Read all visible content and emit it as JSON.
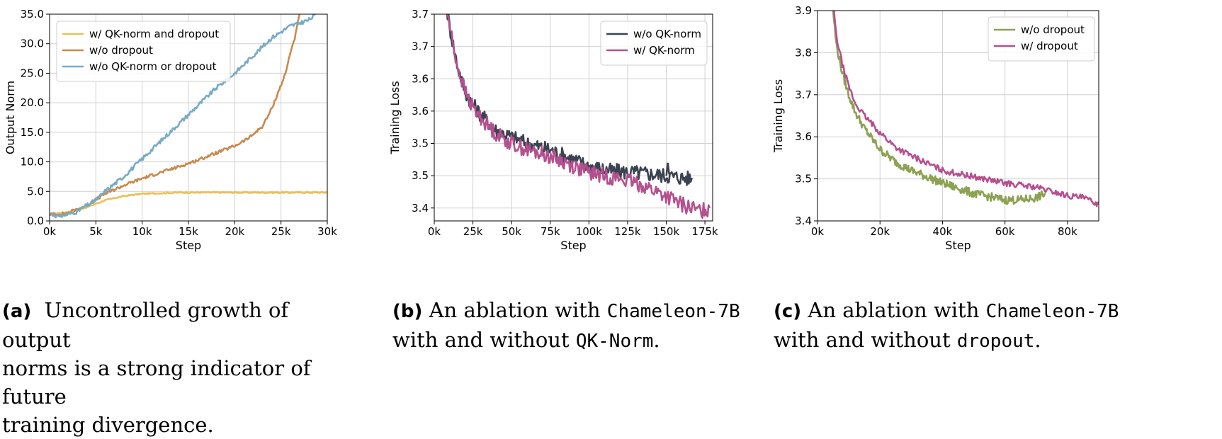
{
  "chart_data": [
    {
      "type": "line",
      "panel": "a",
      "xlabel": "Step",
      "ylabel": "Output Norm",
      "xlim": [
        0,
        30000
      ],
      "ylim": [
        0,
        35
      ],
      "x_ticks": [
        0,
        5000,
        10000,
        15000,
        20000,
        25000,
        30000
      ],
      "x_tick_labels": [
        "0k",
        "5k",
        "10k",
        "15k",
        "20k",
        "25k",
        "30k"
      ],
      "y_ticks": [
        0,
        5,
        10,
        15,
        20,
        25,
        30,
        35
      ],
      "y_tick_labels": [
        "0.0",
        "5.0",
        "10.0",
        "15.0",
        "20.0",
        "25.0",
        "30.0",
        "35.0"
      ],
      "legend_position": "top-left",
      "series": [
        {
          "name": "w/ QK-norm and dropout",
          "color": "#e8c15c",
          "noise": 0.1,
          "points": [
            [
              0,
              1.2
            ],
            [
              2000,
              1.5
            ],
            [
              4000,
              2.3
            ],
            [
              6000,
              3.5
            ],
            [
              8000,
              4.2
            ],
            [
              10000,
              4.6
            ],
            [
              12000,
              4.7
            ],
            [
              14000,
              4.8
            ],
            [
              16000,
              4.8
            ],
            [
              20000,
              4.8
            ],
            [
              25000,
              4.8
            ],
            [
              30000,
              4.8
            ]
          ]
        },
        {
          "name": "w/o dropout",
          "color": "#c88a4e",
          "noise": 0.25,
          "points": [
            [
              0,
              1.2
            ],
            [
              1000,
              1.0
            ],
            [
              2000,
              1.4
            ],
            [
              4000,
              2.6
            ],
            [
              6000,
              4.6
            ],
            [
              8000,
              6.0
            ],
            [
              10000,
              7.2
            ],
            [
              12000,
              8.2
            ],
            [
              14000,
              9.2
            ],
            [
              16000,
              10.3
            ],
            [
              18000,
              11.5
            ],
            [
              20000,
              12.7
            ],
            [
              21500,
              14.0
            ],
            [
              23000,
              16.0
            ],
            [
              24000,
              19.0
            ],
            [
              25000,
              23.0
            ],
            [
              25500,
              25.0
            ],
            [
              26000,
              28.5
            ],
            [
              26500,
              31.0
            ],
            [
              27000,
              35.0
            ]
          ]
        },
        {
          "name": "w/o QK-norm or dropout",
          "color": "#78abc5",
          "noise": 0.35,
          "points": [
            [
              0,
              1.2
            ],
            [
              1000,
              0.8
            ],
            [
              2000,
              1.1
            ],
            [
              3000,
              1.6
            ],
            [
              4000,
              2.6
            ],
            [
              5000,
              3.5
            ],
            [
              6000,
              5.0
            ],
            [
              8000,
              7.5
            ],
            [
              10000,
              10.5
            ],
            [
              12000,
              13.5
            ],
            [
              14000,
              16.5
            ],
            [
              16000,
              19.5
            ],
            [
              18000,
              22.5
            ],
            [
              20000,
              25.0
            ],
            [
              22000,
              28.0
            ],
            [
              24000,
              31.0
            ],
            [
              26000,
              33.0
            ],
            [
              28000,
              34.0
            ],
            [
              28800,
              35.0
            ]
          ]
        }
      ]
    },
    {
      "type": "line",
      "panel": "b",
      "xlabel": "Step",
      "ylabel": "Training Loss",
      "xlim": [
        0,
        180000
      ],
      "ylim": [
        3.38,
        3.7
      ],
      "x_ticks": [
        0,
        25000,
        50000,
        75000,
        100000,
        125000,
        150000,
        175000
      ],
      "x_tick_labels": [
        "0k",
        "25k",
        "50k",
        "75k",
        "100k",
        "125k",
        "150k",
        "175k"
      ],
      "y_ticks": [
        3.4,
        3.45,
        3.5,
        3.55,
        3.6,
        3.65,
        3.7
      ],
      "y_tick_labels": [
        "3.4",
        "3.5",
        "3.5",
        "3.6",
        "3.6",
        "3.7",
        "3.7"
      ],
      "legend_position": "top-right",
      "series": [
        {
          "name": "w/o QK-norm",
          "color": "#3b4252",
          "noise": 0.012,
          "spike": {
            "x": 151000,
            "y": 3.47
          },
          "points": [
            [
              8000,
              3.71
            ],
            [
              10000,
              3.68
            ],
            [
              15000,
              3.62
            ],
            [
              20000,
              3.58
            ],
            [
              25000,
              3.56
            ],
            [
              30000,
              3.545
            ],
            [
              40000,
              3.52
            ],
            [
              50000,
              3.51
            ],
            [
              60000,
              3.5
            ],
            [
              75000,
              3.49
            ],
            [
              90000,
              3.475
            ],
            [
              100000,
              3.465
            ],
            [
              115000,
              3.457
            ],
            [
              130000,
              3.455
            ],
            [
              150000,
              3.45
            ],
            [
              167000,
              3.445
            ]
          ]
        },
        {
          "name": "w/ QK-norm",
          "color": "#b5508f",
          "noise": 0.012,
          "points": [
            [
              8000,
              3.71
            ],
            [
              10000,
              3.68
            ],
            [
              15000,
              3.62
            ],
            [
              20000,
              3.58
            ],
            [
              25000,
              3.555
            ],
            [
              30000,
              3.54
            ],
            [
              40000,
              3.515
            ],
            [
              50000,
              3.5
            ],
            [
              60000,
              3.49
            ],
            [
              75000,
              3.48
            ],
            [
              90000,
              3.465
            ],
            [
              100000,
              3.455
            ],
            [
              120000,
              3.445
            ],
            [
              135000,
              3.435
            ],
            [
              150000,
              3.418
            ],
            [
              160000,
              3.405
            ],
            [
              172000,
              3.395
            ],
            [
              178000,
              3.4
            ]
          ]
        }
      ]
    },
    {
      "type": "line",
      "panel": "c",
      "xlabel": "Step",
      "ylabel": "Training Loss",
      "xlim": [
        0,
        90000
      ],
      "ylim": [
        3.4,
        3.9
      ],
      "x_ticks": [
        0,
        20000,
        40000,
        60000,
        80000
      ],
      "x_tick_labels": [
        "0k",
        "20k",
        "40k",
        "60k",
        "80k"
      ],
      "y_ticks": [
        3.4,
        3.5,
        3.6,
        3.7,
        3.8,
        3.9
      ],
      "y_tick_labels": [
        "3.4",
        "3.5",
        "3.6",
        "3.7",
        "3.8",
        "3.9"
      ],
      "legend_position": "top-right",
      "series": [
        {
          "name": "w/o dropout",
          "color": "#8ca252",
          "noise": 0.01,
          "points": [
            [
              5000,
              3.9
            ],
            [
              6000,
              3.82
            ],
            [
              8000,
              3.75
            ],
            [
              10000,
              3.7
            ],
            [
              12000,
              3.66
            ],
            [
              15000,
              3.62
            ],
            [
              20000,
              3.57
            ],
            [
              25000,
              3.54
            ],
            [
              30000,
              3.52
            ],
            [
              40000,
              3.49
            ],
            [
              50000,
              3.465
            ],
            [
              60000,
              3.45
            ],
            [
              65000,
              3.45
            ],
            [
              70000,
              3.455
            ],
            [
              73000,
              3.465
            ]
          ]
        },
        {
          "name": "w/ dropout",
          "color": "#b5508f",
          "noise": 0.007,
          "points": [
            [
              5000,
              3.92
            ],
            [
              6000,
              3.84
            ],
            [
              8000,
              3.77
            ],
            [
              10000,
              3.72
            ],
            [
              12000,
              3.68
            ],
            [
              15000,
              3.65
            ],
            [
              20000,
              3.61
            ],
            [
              25000,
              3.575
            ],
            [
              30000,
              3.555
            ],
            [
              40000,
              3.52
            ],
            [
              50000,
              3.505
            ],
            [
              60000,
              3.49
            ],
            [
              70000,
              3.48
            ],
            [
              80000,
              3.46
            ],
            [
              85000,
              3.455
            ],
            [
              90000,
              3.44
            ]
          ]
        }
      ]
    }
  ],
  "captions": [
    {
      "label": "(a)",
      "lines": [
        "Uncontrolled growth of output",
        "norms is a strong indicator of future",
        "training divergence."
      ]
    },
    {
      "label": "(b)",
      "text1": "An ablation with ",
      "code1": "Chameleon-7B",
      "text2": "with and without ",
      "code2": "QK-Norm",
      "end": "."
    },
    {
      "label": "(c)",
      "text1": "An ablation with ",
      "code1": "Chameleon-7B",
      "text2": "with and without ",
      "code2": "dropout",
      "end": "."
    }
  ]
}
